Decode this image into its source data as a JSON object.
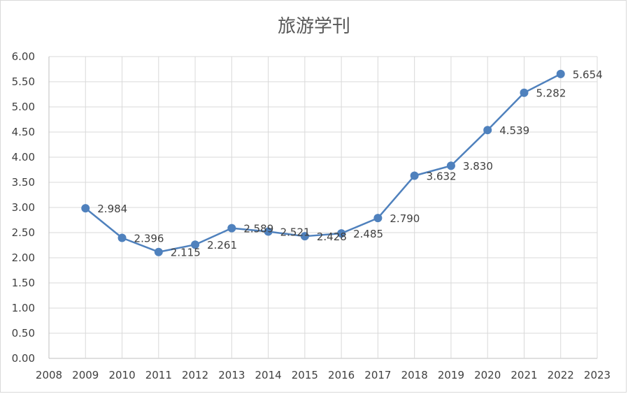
{
  "chart_data": {
    "type": "line",
    "title": "旅游学刊",
    "xlabel": "",
    "ylabel": "",
    "x": [
      2009,
      2010,
      2011,
      2012,
      2013,
      2014,
      2015,
      2016,
      2017,
      2018,
      2019,
      2020,
      2021,
      2022
    ],
    "series": [
      {
        "name": "",
        "values": [
          2.984,
          2.396,
          2.115,
          2.261,
          2.589,
          2.521,
          2.428,
          2.485,
          2.79,
          3.632,
          3.83,
          4.539,
          5.282,
          5.654
        ],
        "labels": [
          "2.984",
          "2.396",
          "2.115",
          "2.261",
          "2.589",
          "2.521",
          "2.428",
          "2.485",
          "2.790",
          "3.632",
          "3.830",
          "4.539",
          "5.282",
          "5.654"
        ],
        "color": "#4f81bd"
      }
    ],
    "xlim": [
      2008,
      2023
    ],
    "ylim": [
      0,
      6
    ],
    "x_ticks": [
      "2008",
      "2009",
      "2010",
      "2011",
      "2012",
      "2013",
      "2014",
      "2015",
      "2016",
      "2017",
      "2018",
      "2019",
      "2020",
      "2021",
      "2022",
      "2023"
    ],
    "y_ticks": [
      "0.00",
      "0.50",
      "1.00",
      "1.50",
      "2.00",
      "2.50",
      "3.00",
      "3.50",
      "4.00",
      "4.50",
      "5.00",
      "5.50",
      "6.00"
    ],
    "grid": true,
    "legend": "none"
  }
}
